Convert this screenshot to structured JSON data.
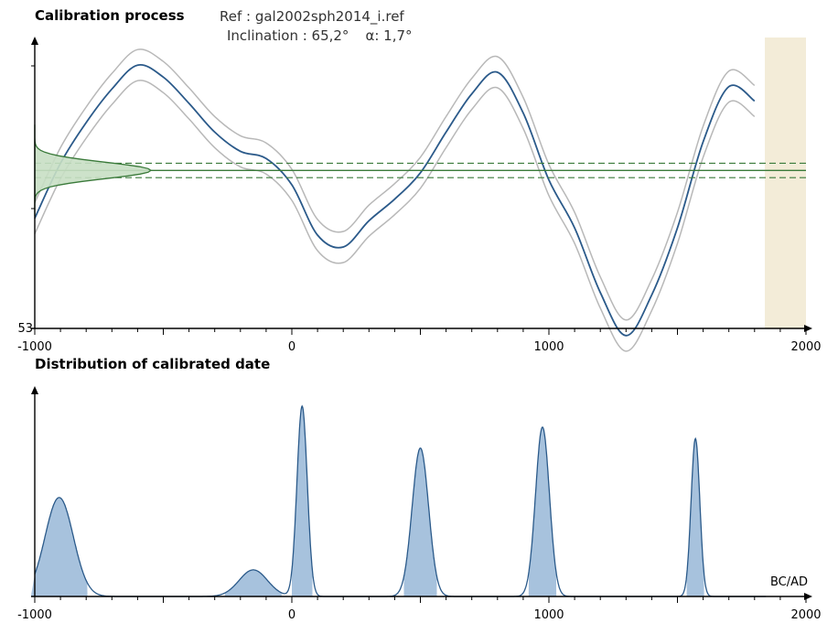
{
  "header": {
    "title": "Calibration process",
    "ref_line": "Ref : gal2002sph2014_i.ref",
    "inclination_text": "Inclination : 65,2°",
    "alpha_text": "α: 1,7°"
  },
  "distribution": {
    "title": "Distribution of calibrated date",
    "bcad_label": "BC/AD"
  },
  "colors": {
    "curve": "#2b5a8a",
    "envelope": "#b8b8b8",
    "measure": "#3a7a3a",
    "measure_fill": "#c8dfc4",
    "density_fill": "#a7c2dd",
    "density_stroke": "#2b5a8a",
    "future_band": "#f3ecd8"
  },
  "chart_data": [
    {
      "type": "line",
      "title": "Calibration process",
      "xlim": [
        -1000,
        2000
      ],
      "x_ticks": [
        -1000,
        0,
        1000,
        2000
      ],
      "y_visible_tick_label": "53",
      "y_min_label_value": 53,
      "measure_level_rel": 0.5,
      "series": [
        {
          "role": "reference-curve",
          "x": [
            -1000,
            -900,
            -800,
            -700,
            -600,
            -500,
            -400,
            -300,
            -200,
            -100,
            0,
            100,
            200,
            300,
            400,
            500,
            600,
            700,
            800,
            900,
            1000,
            1100,
            1200,
            1300,
            1400,
            1500,
            1600,
            1700,
            1800
          ],
          "y": [
            54.6,
            56.9,
            58.6,
            60.0,
            61.0,
            60.5,
            59.4,
            58.2,
            57.4,
            57.1,
            56.0,
            53.9,
            53.4,
            54.5,
            55.4,
            56.5,
            58.2,
            59.8,
            60.7,
            59.0,
            56.2,
            54.2,
            51.5,
            49.7,
            51.4,
            54.2,
            57.8,
            60.1,
            59.5
          ]
        }
      ],
      "envelope_half_width": 0.65,
      "measurement": {
        "mean": 56.6,
        "sigma_lines": [
          56.3,
          56.9
        ]
      },
      "shaded_range_x": [
        1840,
        2000
      ]
    },
    {
      "type": "area",
      "title": "Distribution of calibrated date",
      "xlim": [
        -1000,
        2000
      ],
      "x_ticks": [
        -1000,
        0,
        1000,
        2000
      ],
      "peaks": [
        {
          "center": -905,
          "width": 55,
          "height": 0.52
        },
        {
          "center": -150,
          "width": 55,
          "height": 0.14
        },
        {
          "center": 40,
          "width": 20,
          "height": 1.0
        },
        {
          "center": 500,
          "width": 32,
          "height": 0.78
        },
        {
          "center": 975,
          "width": 27,
          "height": 0.89
        },
        {
          "center": 1570,
          "width": 17,
          "height": 0.83
        }
      ]
    }
  ]
}
